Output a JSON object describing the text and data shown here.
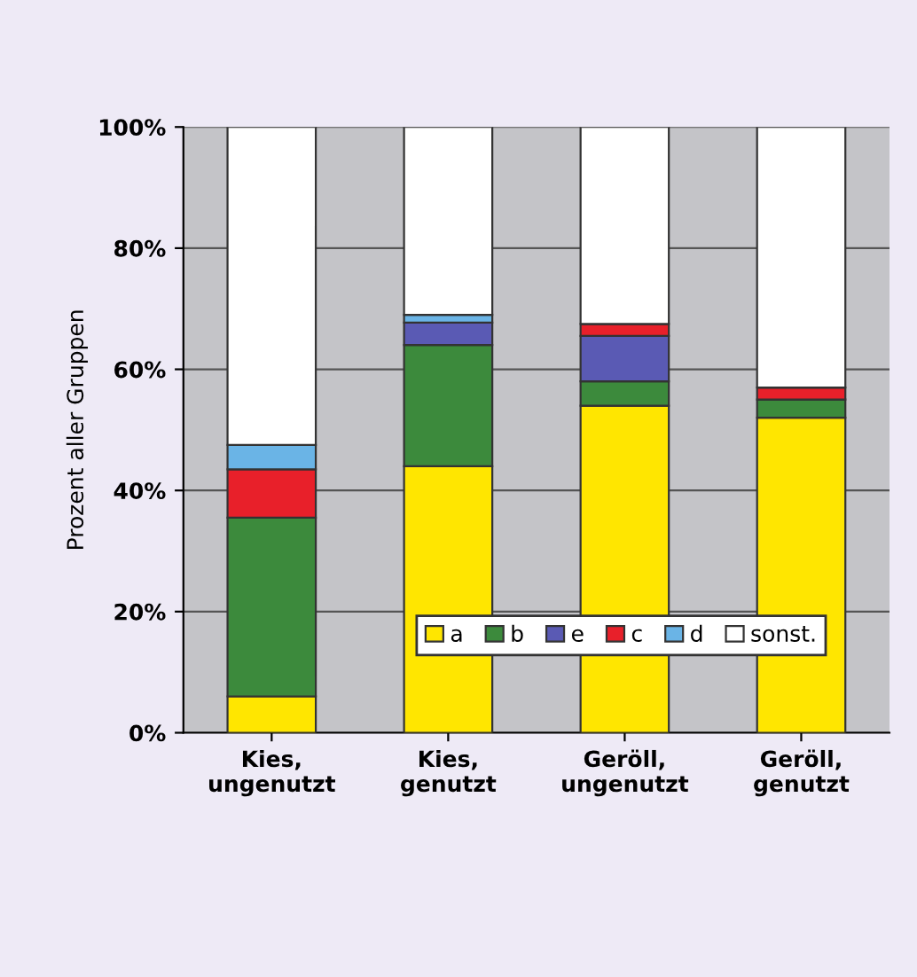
{
  "chart_data": {
    "type": "bar",
    "stacked": true,
    "ylabel": "Prozent aller Gruppen",
    "categories": [
      "Kies,\nungenutzt",
      "Kies,\ngenutzt",
      "Geröll,\nungenutzt",
      "Geröll,\ngenutzt"
    ],
    "series": [
      {
        "name": "a",
        "color": "#ffe600",
        "values": [
          6,
          44,
          54,
          52
        ]
      },
      {
        "name": "b",
        "color": "#3c8a3c",
        "values": [
          29.5,
          20,
          4,
          3
        ]
      },
      {
        "name": "e",
        "color": "#5a5ab4",
        "values": [
          0,
          3.7,
          7.5,
          0
        ]
      },
      {
        "name": "c",
        "color": "#e8202a",
        "values": [
          8,
          0,
          2,
          2
        ]
      },
      {
        "name": "d",
        "color": "#6ab4e6",
        "values": [
          4,
          1.3,
          0,
          0
        ]
      },
      {
        "name": "sonst.",
        "color": "#ffffff",
        "values": [
          52.5,
          31,
          32.5,
          43
        ]
      }
    ],
    "ylim": [
      0,
      100
    ],
    "yticks": [
      {
        "value": 0,
        "label": "0%"
      },
      {
        "value": 20,
        "label": "20%"
      },
      {
        "value": 40,
        "label": "40%"
      },
      {
        "value": 60,
        "label": "60%"
      },
      {
        "value": 80,
        "label": "80%"
      },
      {
        "value": 100,
        "label": "100%"
      }
    ],
    "grid": "y",
    "legend": "bottom"
  }
}
